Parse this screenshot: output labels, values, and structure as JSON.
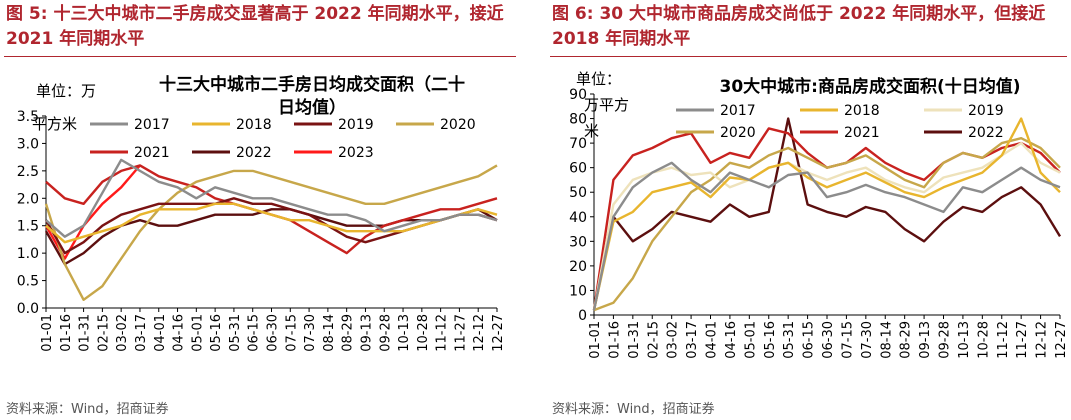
{
  "figure5": {
    "heading": "图 5:  十三大中城市二手房成交显著高于 2022 年同期水平，接近 2021 年同期水平",
    "source": "资料来源：Wind，招商证券"
  },
  "figure6": {
    "heading": "图 6:  30 大中城市商品房成交尚低于 2022 年同期水平，但接近 2018 年同期水平",
    "source": "资料来源：Wind，招商证券"
  },
  "colors": {
    "2017": "#8c8c8c",
    "2018": "#e8b52e",
    "2019": "#7a1313",
    "2020": "#c7a74a",
    "2021": "#c8221f",
    "2022": "#5c0f0f",
    "2023": "#ff1a1a",
    "2019_right": "#eee2bb",
    "accent": "#b0262f"
  },
  "chart_data": [
    {
      "type": "line",
      "title": "十三大中城市二手房日均成交面积（二十日均值）",
      "title_line1": "十三大中城市二手房日均成交面积（二十",
      "title_line2": "日均值）",
      "unit_line1": "单位：万",
      "unit_line2": "平方米",
      "ylim": [
        0,
        3.5
      ],
      "yticks": [
        "0.0",
        "0.5",
        "1.0",
        "1.5",
        "2.0",
        "2.5",
        "3.0",
        "3.5"
      ],
      "xticks": [
        "01-01",
        "01-16",
        "01-31",
        "02-15",
        "03-02",
        "03-17",
        "04-01",
        "04-16",
        "05-01",
        "05-16",
        "05-31",
        "06-15",
        "06-30",
        "07-15",
        "07-30",
        "08-14",
        "08-29",
        "09-13",
        "09-28",
        "10-13",
        "10-28",
        "11-12",
        "11-27",
        "12-12",
        "12-27"
      ],
      "legend": [
        "2017",
        "2018",
        "2019",
        "2020",
        "2021",
        "2022",
        "2023"
      ],
      "series": [
        {
          "name": "2017",
          "values": [
            1.6,
            1.3,
            1.5,
            2.1,
            2.7,
            2.5,
            2.3,
            2.2,
            2.0,
            2.2,
            2.1,
            2.0,
            2.0,
            1.9,
            1.8,
            1.7,
            1.7,
            1.6,
            1.4,
            1.5,
            1.6,
            1.6,
            1.7,
            1.7,
            1.6
          ]
        },
        {
          "name": "2018",
          "values": [
            1.5,
            1.2,
            1.3,
            1.4,
            1.5,
            1.7,
            1.8,
            1.8,
            1.8,
            1.9,
            1.9,
            1.8,
            1.7,
            1.6,
            1.6,
            1.5,
            1.4,
            1.4,
            1.4,
            1.4,
            1.5,
            1.6,
            1.7,
            1.8,
            1.7
          ]
        },
        {
          "name": "2019",
          "values": [
            1.6,
            1.0,
            1.2,
            1.5,
            1.7,
            1.8,
            1.9,
            1.9,
            1.9,
            1.9,
            2.0,
            1.9,
            1.9,
            1.8,
            1.7,
            1.5,
            1.3,
            1.2,
            1.3,
            1.4,
            1.5,
            1.6,
            1.7,
            1.7,
            1.6
          ]
        },
        {
          "name": "2020",
          "values": [
            1.9,
            0.8,
            0.15,
            0.4,
            0.9,
            1.4,
            1.8,
            2.1,
            2.3,
            2.4,
            2.5,
            2.5,
            2.4,
            2.3,
            2.2,
            2.1,
            2.0,
            1.9,
            1.9,
            2.0,
            2.1,
            2.2,
            2.3,
            2.4,
            2.6
          ]
        },
        {
          "name": "2021",
          "values": [
            2.3,
            2.0,
            1.9,
            2.3,
            2.5,
            2.6,
            2.4,
            2.3,
            2.2,
            2.0,
            1.9,
            1.8,
            1.7,
            1.6,
            1.4,
            1.2,
            1.0,
            1.3,
            1.5,
            1.6,
            1.7,
            1.8,
            1.8,
            1.9,
            2.0
          ]
        },
        {
          "name": "2022",
          "values": [
            1.4,
            0.8,
            1.0,
            1.3,
            1.5,
            1.6,
            1.5,
            1.5,
            1.6,
            1.7,
            1.7,
            1.7,
            1.8,
            1.8,
            1.7,
            1.6,
            1.5,
            1.5,
            1.5,
            1.6,
            1.6,
            1.6,
            1.7,
            1.8,
            1.6
          ]
        },
        {
          "name": "2023",
          "values": [
            1.5,
            0.9,
            1.5,
            1.9,
            2.2,
            2.6
          ]
        }
      ]
    },
    {
      "type": "line",
      "title": "30大中城市:商品房成交面积(十日均值)",
      "unit_line1": "单位：",
      "unit_line2": "万平方",
      "unit_line3": "米",
      "ylim": [
        0,
        90
      ],
      "yticks": [
        "0",
        "10",
        "20",
        "30",
        "40",
        "50",
        "60",
        "70",
        "80",
        "90"
      ],
      "xticks": [
        "01-01",
        "01-16",
        "01-31",
        "02-15",
        "03-02",
        "03-17",
        "04-01",
        "04-16",
        "05-01",
        "05-16",
        "05-31",
        "06-15",
        "06-30",
        "07-15",
        "07-30",
        "08-14",
        "08-29",
        "09-13",
        "09-28",
        "10-13",
        "10-28",
        "11-12",
        "11-27",
        "12-12",
        "12-27"
      ],
      "legend": [
        "2017",
        "2018",
        "2019",
        "2020",
        "2021",
        "2022"
      ],
      "series": [
        {
          "name": "2017",
          "values": [
            2,
            40,
            52,
            58,
            62,
            55,
            50,
            58,
            55,
            52,
            57,
            58,
            48,
            50,
            53,
            50,
            48,
            45,
            42,
            52,
            50,
            55,
            60,
            55,
            52
          ]
        },
        {
          "name": "2018",
          "values": [
            2,
            38,
            42,
            50,
            52,
            54,
            48,
            56,
            55,
            60,
            62,
            56,
            52,
            55,
            58,
            54,
            50,
            48,
            52,
            55,
            58,
            65,
            80,
            58,
            50
          ]
        },
        {
          "name": "2019",
          "values": [
            2,
            45,
            55,
            58,
            60,
            57,
            58,
            52,
            55,
            60,
            62,
            58,
            55,
            58,
            60,
            55,
            52,
            50,
            56,
            58,
            60,
            65,
            70,
            62,
            58
          ]
        },
        {
          "name": "2020",
          "values": [
            2,
            5,
            15,
            30,
            40,
            50,
            55,
            62,
            60,
            65,
            68,
            64,
            60,
            62,
            65,
            60,
            55,
            52,
            62,
            66,
            64,
            70,
            72,
            68,
            60
          ]
        },
        {
          "name": "2021",
          "values": [
            2,
            55,
            65,
            68,
            72,
            74,
            62,
            66,
            64,
            76,
            74,
            66,
            60,
            62,
            68,
            62,
            58,
            55,
            62,
            66,
            64,
            68,
            70,
            66,
            58
          ]
        },
        {
          "name": "2022",
          "values": [
            2,
            40,
            30,
            35,
            42,
            40,
            38,
            45,
            40,
            42,
            80,
            45,
            42,
            40,
            44,
            42,
            35,
            30,
            38,
            44,
            42,
            48,
            52,
            45,
            32
          ]
        }
      ]
    }
  ]
}
